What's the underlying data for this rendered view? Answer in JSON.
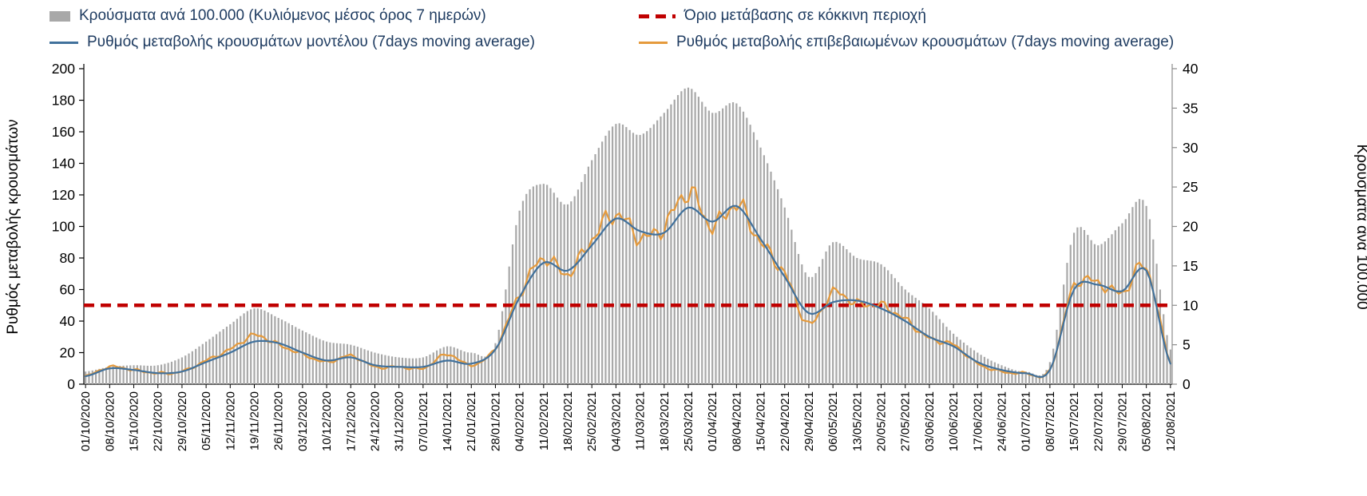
{
  "colors": {
    "bars": "#a8a8a8",
    "threshold": "#c00000",
    "model": "#41719c",
    "confirmed": "#e59a3c",
    "legend_text": "#1f3c61",
    "axis_text": "#000000"
  },
  "legend": {
    "items": [
      {
        "key": "cases",
        "label": "Κρούσματα ανά 100.000 (Κυλιόμενος μέσος όρος 7 ημερών)"
      },
      {
        "key": "threshold",
        "label": "Όριο μετάβασης σε κόκκινη περιοχή"
      },
      {
        "key": "model",
        "label": "Ρυθμός μεταβολής κρουσμάτων μοντέλου (7days moving average)"
      },
      {
        "key": "confirmed",
        "label": "Ρυθμός μεταβολής επιβεβαιωμένων κρουσμάτων (7days moving average)"
      }
    ]
  },
  "chart_data": {
    "type": "bar",
    "combo": true,
    "grid": false,
    "legend_position": "top",
    "x_tick_rotation": -90,
    "left_axis": {
      "title": "Ρυθμός μεταβολής κρουσμάτων",
      "min": 0,
      "max": 200,
      "ticks": [
        0,
        20,
        40,
        60,
        80,
        100,
        120,
        140,
        160,
        180,
        200
      ]
    },
    "right_axis": {
      "title": "Κρούσματα ανά 100.000",
      "min": 0,
      "max": 40,
      "ticks": [
        0,
        5,
        10,
        15,
        20,
        25,
        30,
        35,
        40
      ]
    },
    "threshold": {
      "key": "threshold",
      "name": "Όριο μετάβασης σε κόκκινη περιοχή",
      "axis": "left",
      "value": 50,
      "color": "#c00000",
      "style": "dashed"
    },
    "categories": [
      "01/10/2020",
      "08/10/2020",
      "15/10/2020",
      "22/10/2020",
      "29/10/2020",
      "05/11/2020",
      "12/11/2020",
      "19/11/2020",
      "26/11/2020",
      "03/12/2020",
      "10/12/2020",
      "17/12/2020",
      "24/12/2020",
      "31/12/2020",
      "07/01/2021",
      "14/01/2021",
      "21/01/2021",
      "28/01/2021",
      "04/02/2021",
      "11/02/2021",
      "18/02/2021",
      "25/02/2021",
      "04/03/2021",
      "11/03/2021",
      "18/03/2021",
      "25/03/2021",
      "01/04/2021",
      "08/04/2021",
      "15/04/2021",
      "22/04/2021",
      "29/04/2021",
      "06/05/2021",
      "13/05/2021",
      "20/05/2021",
      "27/05/2021",
      "03/06/2021",
      "10/06/2021",
      "17/06/2021",
      "24/06/2021",
      "01/07/2021",
      "08/07/2021",
      "15/07/2021",
      "22/07/2021",
      "29/07/2021",
      "05/08/2021",
      "12/08/2021"
    ],
    "series": [
      {
        "key": "cases",
        "name": "Κρούσματα ανά 100.000 (Κυλιόμενος μέσος όρος 7 ημερών)",
        "kind": "bar",
        "axis": "right",
        "color": "#a8a8a8",
        "values": [
          1.6,
          2.2,
          2.4,
          2.4,
          3.4,
          5.4,
          7.6,
          9.6,
          8.4,
          6.8,
          5.4,
          5.0,
          4.0,
          3.4,
          3.4,
          4.8,
          4.0,
          5.2,
          22.0,
          25.4,
          22.8,
          28.4,
          33.0,
          31.6,
          34.4,
          37.6,
          34.4,
          35.6,
          30.0,
          22.4,
          13.6,
          18.0,
          16.0,
          15.2,
          12.0,
          9.6,
          6.4,
          4.0,
          2.4,
          1.6,
          2.8,
          19.2,
          17.6,
          20.4,
          22.6,
          4.4
        ]
      },
      {
        "key": "model",
        "name": "Ρυθμός μεταβολής κρουσμάτων μοντέλου (7days moving average)",
        "kind": "line",
        "axis": "left",
        "color": "#41719c",
        "values": [
          5,
          10,
          9,
          7,
          8,
          14,
          20,
          27,
          26,
          20,
          15,
          17,
          12,
          11,
          11,
          15,
          13,
          22,
          55,
          77,
          72,
          88,
          105,
          97,
          96,
          112,
          103,
          113,
          92,
          68,
          45,
          52,
          53,
          48,
          40,
          30,
          24,
          14,
          9,
          7,
          9,
          60,
          63,
          59,
          72,
          13
        ]
      },
      {
        "key": "confirmed",
        "name": "Ρυθμός μεταβολής επιβεβαιωμένων κρουσμάτων (7days moving average)",
        "kind": "line",
        "axis": "left",
        "color": "#e59a3c",
        "values": [
          5,
          11,
          9,
          7,
          8,
          15,
          22,
          31,
          25,
          19,
          14,
          18,
          11,
          11,
          10,
          19,
          12,
          23,
          57,
          80,
          70,
          92,
          108,
          93,
          100,
          122,
          100,
          114,
          90,
          70,
          38,
          58,
          51,
          50,
          41,
          29,
          25,
          13,
          8,
          7,
          9,
          62,
          64,
          58,
          74,
          14
        ]
      }
    ]
  }
}
